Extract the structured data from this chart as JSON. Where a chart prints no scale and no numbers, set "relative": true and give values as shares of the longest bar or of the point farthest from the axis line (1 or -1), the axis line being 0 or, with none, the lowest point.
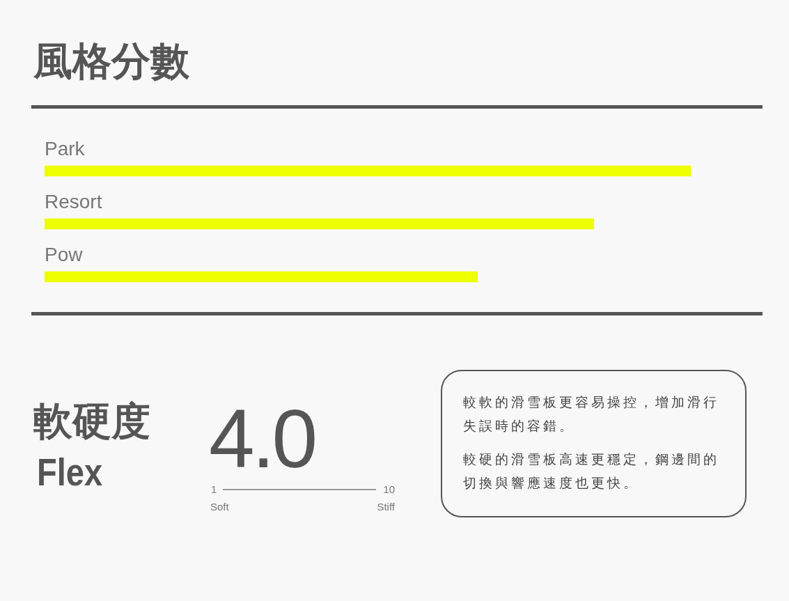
{
  "chart_data": [
    {
      "type": "bar",
      "title": "風格分數",
      "categories": [
        "Park",
        "Resort",
        "Pow"
      ],
      "values": [
        1,
        0.85,
        0.67
      ],
      "color": "#eeff00",
      "orientation": "horizontal",
      "relative": true
    },
    {
      "type": "other",
      "title": "軟硬度",
      "subtitle": "Flex",
      "annotations": [
        "4.0",
        "1",
        "10",
        "Soft",
        "Stiff",
        "較軟的滑雪板更容易操控，增加滑行失誤時的容錯。",
        "較硬的滑雪板高速更穩定，鋼邊間的切換與響應速度也更快。"
      ]
    }
  ]
}
